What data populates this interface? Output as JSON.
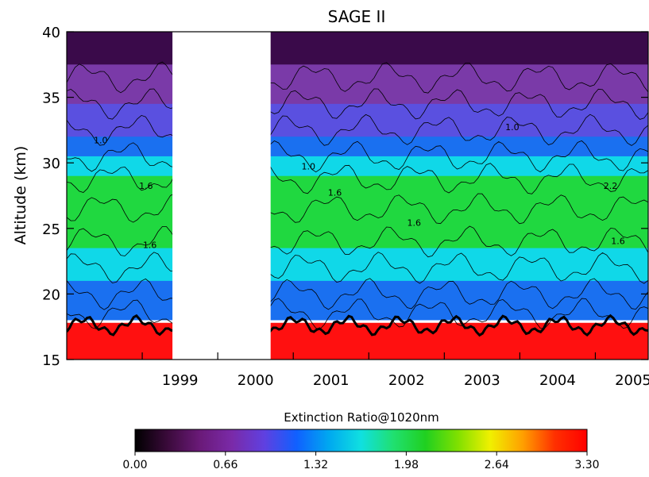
{
  "chart_data": {
    "type": "heatmap",
    "title": "SAGE II",
    "ylabel": "Altitude (km)",
    "xlabel": "",
    "x_range": [
      1998.0,
      2005.7
    ],
    "ylim": [
      15,
      40
    ],
    "x_tick_labels": [
      "1999",
      "2000",
      "2001",
      "2002",
      "2003",
      "2004",
      "2005"
    ],
    "x_tick_values": [
      1999.5,
      2000.5,
      2001.5,
      2002.5,
      2003.5,
      2004.5,
      2005.5
    ],
    "y_ticks": [
      15,
      20,
      25,
      30,
      35,
      40
    ],
    "data_gap": [
      1999.4,
      2000.7
    ],
    "contour_labels": [
      {
        "text": "1.0",
        "x": 1998.45,
        "y": 31.5
      },
      {
        "text": "1.6",
        "x": 1999.05,
        "y": 28.0
      },
      {
        "text": "1.6",
        "x": 1999.1,
        "y": 23.5
      },
      {
        "text": "1.0",
        "x": 2001.2,
        "y": 29.5
      },
      {
        "text": "1.6",
        "x": 2001.55,
        "y": 27.5
      },
      {
        "text": "1.6",
        "x": 2002.6,
        "y": 25.2
      },
      {
        "text": "1.0",
        "x": 2003.9,
        "y": 32.5
      },
      {
        "text": "2.2",
        "x": 2005.2,
        "y": 28.0
      },
      {
        "text": "1.6",
        "x": 2005.3,
        "y": 23.8
      }
    ],
    "colorbar": {
      "label": "Extinction Ratio@1020nm",
      "range": [
        0.0,
        3.3
      ],
      "tick_labels": [
        "0.00",
        "0.66",
        "1.32",
        "1.98",
        "2.64",
        "3.30"
      ],
      "tick_values": [
        0.0,
        0.66,
        1.32,
        1.98,
        2.64,
        3.3
      ],
      "colors": [
        "#000000",
        "#3a0a3a",
        "#6a1a78",
        "#7a2aa8",
        "#6040e0",
        "#1060ff",
        "#00a8f0",
        "#10e0e0",
        "#20e070",
        "#20d020",
        "#80e000",
        "#f0f000",
        "#ffa000",
        "#ff3000",
        "#ff0000"
      ]
    },
    "colormap": {
      "low": "#3a0a4a",
      "purple": "#7a3aa8",
      "violet": "#5a50e0",
      "blue": "#1a70f0",
      "cyan": "#10d8e8",
      "green": "#20d840",
      "high": "#ff1010"
    }
  }
}
